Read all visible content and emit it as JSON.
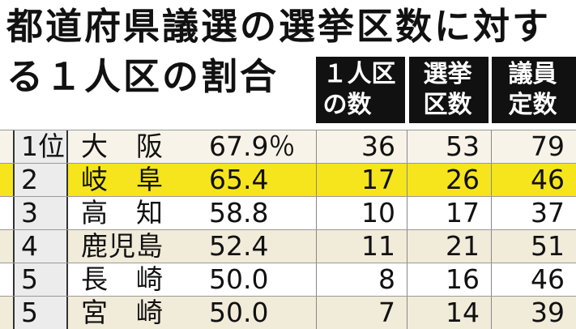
{
  "title": "都道府県議選の選挙区数に対する１人区の割合",
  "table": {
    "headers": [
      "１人区の数",
      "選挙区数",
      "議員定数"
    ],
    "rows": [
      [
        "1位",
        "大　阪",
        "67.9％",
        "36",
        "53",
        "79"
      ],
      [
        "2",
        "岐　阜",
        "65.4",
        "17",
        "26",
        "46"
      ],
      [
        "3",
        "高　知",
        "58.8",
        "10",
        "17",
        "37"
      ],
      [
        "4",
        "鹿児島",
        "52.4",
        "11",
        "21",
        "51"
      ],
      [
        "5",
        "長　崎",
        "50.0",
        "8",
        "16",
        "46"
      ],
      [
        "5",
        "宮　崎",
        "50.0",
        "7",
        "14",
        "39"
      ]
    ]
  }
}
